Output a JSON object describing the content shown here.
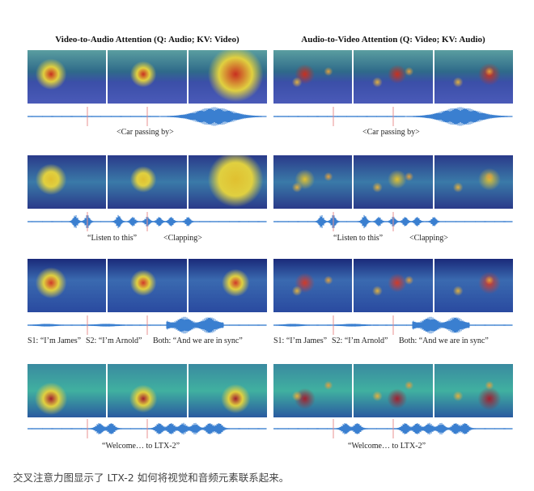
{
  "figure": {
    "panels": [
      {
        "title": "Video-to-Audio Attention (Q: Audio; KV: Video)"
      },
      {
        "title": "Audio-to-Video Attention (Q: Video; KV: Audio)"
      }
    ],
    "rows": [
      {
        "labels": [
          "<Car passing by>"
        ]
      },
      {
        "labels": [
          "“Listen to this”",
          "<Clapping>"
        ]
      },
      {
        "labels": [
          "S1: “I’m James”",
          "S2: “I’m Arnold”",
          "Both: “And we are in sync”"
        ]
      },
      {
        "labels": [
          "“Welcome… to LTX-2”"
        ]
      }
    ],
    "waveform_color": "#3a7fd0",
    "marker_color": "#e89090"
  },
  "caption": "交叉注意力图显示了 LTX-2 如何将视觉和音频元素联系起来。"
}
